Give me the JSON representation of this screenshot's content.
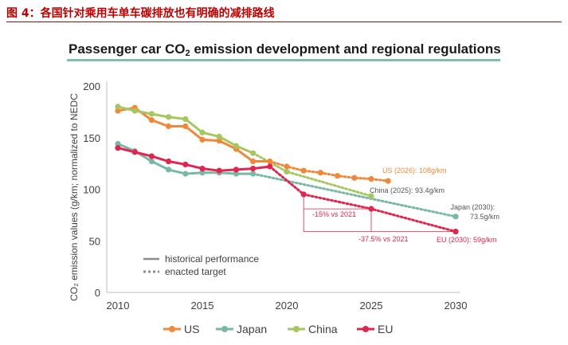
{
  "figure_caption": "图 4：各国针对乘用车单车碳排放也有明确的减排路线",
  "chart_data": {
    "type": "line",
    "title_prefix": "Passenger car CO",
    "title_sub": "2",
    "title_suffix": " emission development and regional regulations",
    "ylabel": "CO₂ emission values (g/km; normalized to NEDC",
    "xlim": [
      2010,
      2030
    ],
    "ylim": [
      0,
      200
    ],
    "x_ticks": [
      2010,
      2015,
      2020,
      2025,
      2030
    ],
    "y_ticks": [
      0,
      50,
      100,
      150,
      200
    ],
    "series": [
      {
        "name": "US",
        "color": "#f0883a",
        "historical": [
          [
            2010,
            176
          ],
          [
            2011,
            179
          ],
          [
            2012,
            167
          ],
          [
            2013,
            161
          ],
          [
            2014,
            161
          ],
          [
            2015,
            148
          ],
          [
            2016,
            147
          ],
          [
            2017,
            139
          ],
          [
            2018,
            127
          ],
          [
            2019,
            127
          ]
        ],
        "target": [
          [
            2019,
            127
          ],
          [
            2020,
            122
          ],
          [
            2021,
            118
          ],
          [
            2022,
            116
          ],
          [
            2023,
            113
          ],
          [
            2024,
            111
          ],
          [
            2025,
            110
          ],
          [
            2026,
            108
          ]
        ]
      },
      {
        "name": "Japan",
        "color": "#79b8a6",
        "historical": [
          [
            2010,
            144
          ],
          [
            2011,
            137
          ],
          [
            2012,
            127
          ],
          [
            2013,
            119
          ],
          [
            2014,
            115
          ],
          [
            2015,
            116
          ],
          [
            2016,
            116
          ],
          [
            2017,
            115
          ],
          [
            2018,
            115
          ]
        ],
        "target": [
          [
            2018,
            115
          ],
          [
            2030,
            73.5
          ]
        ]
      },
      {
        "name": "China",
        "color": "#a6c760",
        "historical": [
          [
            2010,
            180
          ],
          [
            2011,
            176
          ],
          [
            2012,
            173
          ],
          [
            2013,
            170
          ],
          [
            2014,
            168
          ],
          [
            2015,
            155
          ],
          [
            2016,
            151
          ],
          [
            2017,
            142
          ],
          [
            2018,
            135
          ]
        ],
        "target": [
          [
            2018,
            135
          ],
          [
            2020,
            117
          ],
          [
            2025,
            93.4
          ]
        ]
      },
      {
        "name": "EU",
        "color": "#e0264e",
        "historical": [
          [
            2010,
            140
          ],
          [
            2011,
            136
          ],
          [
            2012,
            132
          ],
          [
            2013,
            127
          ],
          [
            2014,
            124
          ],
          [
            2015,
            120
          ],
          [
            2016,
            118
          ],
          [
            2017,
            119
          ],
          [
            2018,
            120
          ],
          [
            2019,
            122
          ]
        ],
        "target": [
          [
            2019,
            122
          ],
          [
            2021,
            95
          ],
          [
            2025,
            81
          ],
          [
            2030,
            59
          ]
        ]
      }
    ],
    "annotations": [
      {
        "text": "US (2026): 108g/km",
        "color": "#f0883a"
      },
      {
        "text": "China (2025): 93.4g/km",
        "color": "#555555"
      },
      {
        "text": "Japan (2030):",
        "color": "#555555"
      },
      {
        "text": "73.5g/km",
        "color": "#555555"
      },
      {
        "text": "EU (2030): 59g/km",
        "color": "#e0264e"
      },
      {
        "text": "-15% vs 2021",
        "color": "#e0264e"
      },
      {
        "text": "-37.5% vs 2021",
        "color": "#e0264e"
      }
    ],
    "style_legend": [
      {
        "label": "historical performance",
        "style": "solid"
      },
      {
        "label": "enacted target",
        "style": "dotted"
      }
    ],
    "legend_position": "bottom"
  }
}
